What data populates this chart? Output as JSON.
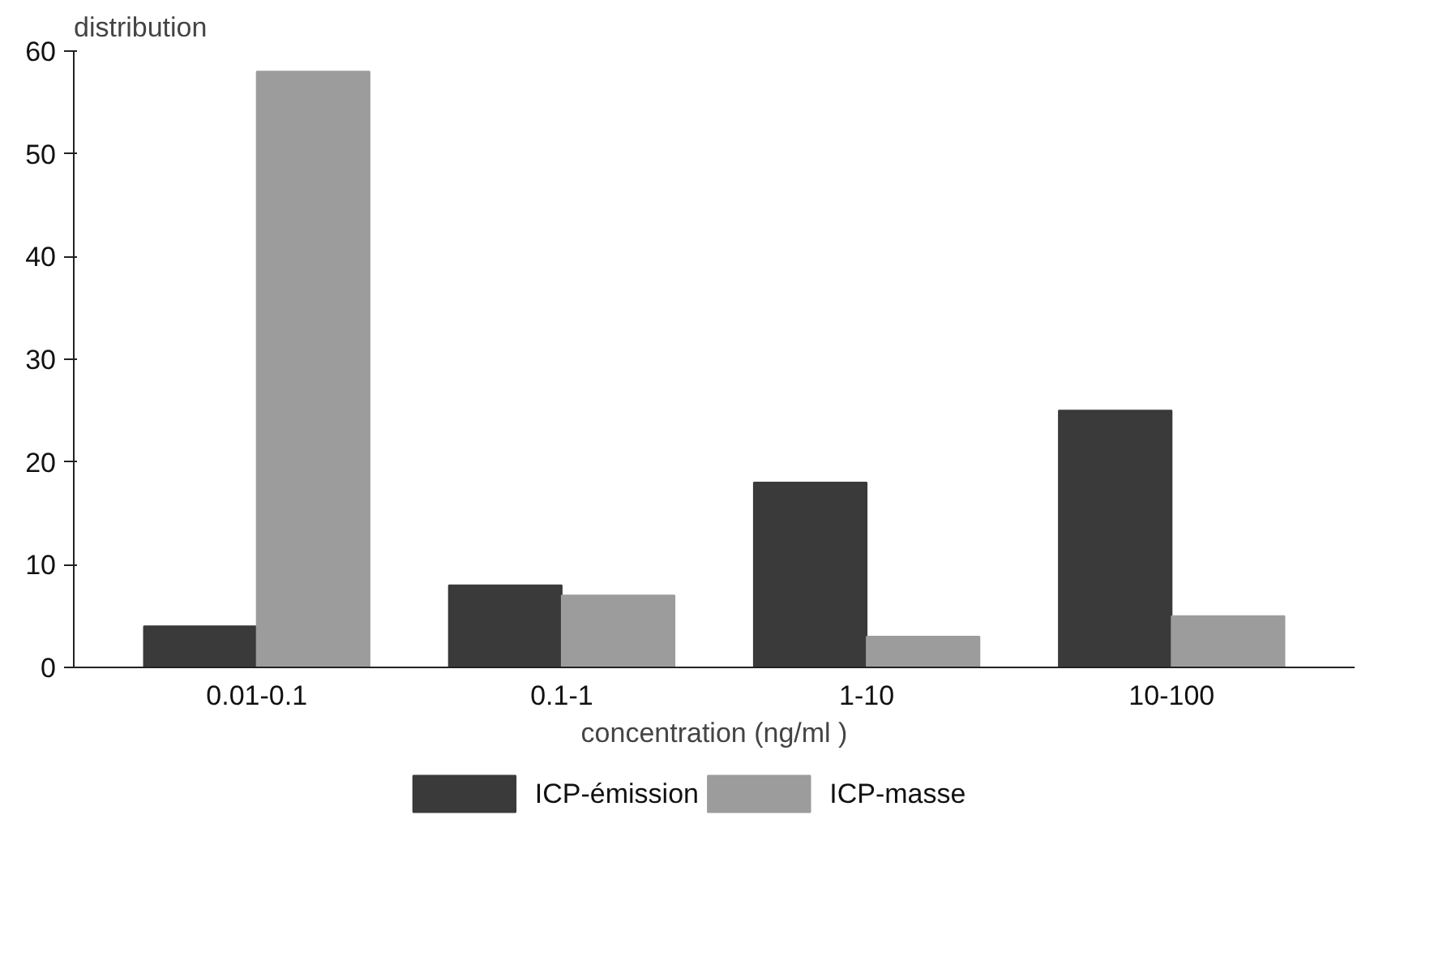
{
  "chart_data": {
    "type": "bar",
    "ylabel": "distribution",
    "xlabel": "concentration (ng/ml )",
    "categories": [
      "0.01-0.1",
      "0.1-1",
      "1-10",
      "10-100"
    ],
    "series": [
      {
        "name": "ICP-émission",
        "color": "#3a3a3a",
        "values": [
          4,
          8,
          18,
          25
        ]
      },
      {
        "name": "ICP-masse",
        "color": "#9c9c9c",
        "values": [
          58,
          7,
          3,
          5
        ]
      }
    ],
    "ylim": [
      0,
      60
    ],
    "yticks": [
      0,
      10,
      20,
      30,
      40,
      50,
      60
    ],
    "grid": false,
    "legend": "bottom"
  }
}
